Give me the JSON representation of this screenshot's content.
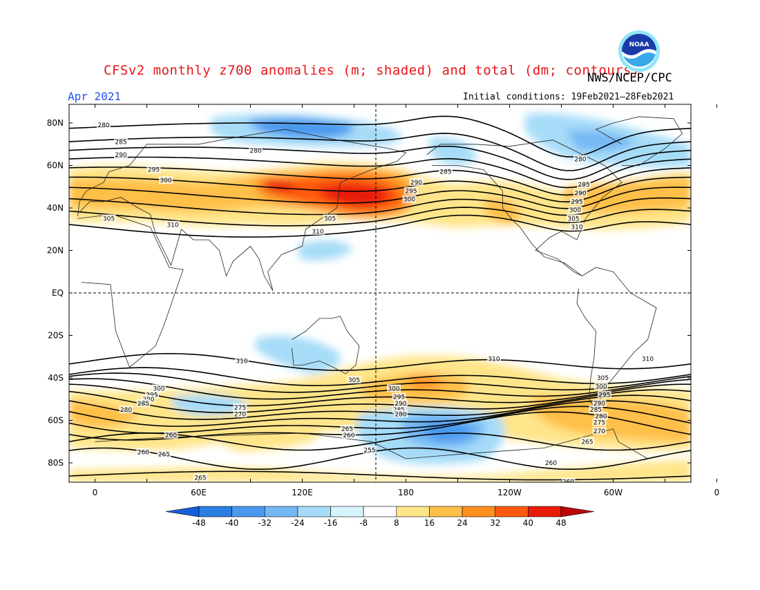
{
  "header": {
    "title": "CFSv2 monthly z700 anomalies (m; shaded) and total (dm; contours)",
    "agency": "NWS/NCEP/CPC",
    "month": "Apr 2021",
    "initial_conditions": "Initial conditions: 19Feb2021–28Feb2021",
    "logo_text": "NOAA"
  },
  "axes": {
    "lat_labels": [
      "80N",
      "60N",
      "40N",
      "20N",
      "EQ",
      "20S",
      "40S",
      "60S",
      "80S"
    ],
    "lon_labels": [
      "0",
      "60E",
      "120E",
      "180",
      "120W",
      "60W",
      "0"
    ]
  },
  "colorbar": {
    "labels": [
      "-48",
      "-40",
      "-32",
      "-24",
      "-16",
      "-8",
      "8",
      "16",
      "24",
      "32",
      "40",
      "48"
    ],
    "colors": [
      "#1560d8",
      "#2b7fe3",
      "#4a99ee",
      "#75b8f4",
      "#a6dcf8",
      "#d6f4fb",
      "#ffffff",
      "#ffe58a",
      "#ffc04a",
      "#ff9020",
      "#ff5a10",
      "#e81a08",
      "#b80808"
    ]
  },
  "contour_labels": [
    {
      "text": "280",
      "lon": 5,
      "lat": 79
    },
    {
      "text": "285",
      "lon": 15,
      "lat": 71
    },
    {
      "text": "290",
      "lon": 15,
      "lat": 65
    },
    {
      "text": "295",
      "lon": 34,
      "lat": 58
    },
    {
      "text": "300",
      "lon": 41,
      "lat": 53
    },
    {
      "text": "305",
      "lon": 8,
      "lat": 35
    },
    {
      "text": "310",
      "lon": 45,
      "lat": 32
    },
    {
      "text": "280",
      "lon": 93,
      "lat": 67
    },
    {
      "text": "305",
      "lon": 136,
      "lat": 35
    },
    {
      "text": "310",
      "lon": 129,
      "lat": 29
    },
    {
      "text": "290",
      "lon": 186,
      "lat": 52
    },
    {
      "text": "295",
      "lon": 183,
      "lat": 48
    },
    {
      "text": "300",
      "lon": 182,
      "lat": 44
    },
    {
      "text": "285",
      "lon": 203,
      "lat": 57
    },
    {
      "text": "280",
      "lon": 281,
      "lat": 63
    },
    {
      "text": "285",
      "lon": 283,
      "lat": 51
    },
    {
      "text": "290",
      "lon": 281,
      "lat": 47
    },
    {
      "text": "295",
      "lon": 279,
      "lat": 43
    },
    {
      "text": "300",
      "lon": 278,
      "lat": 39
    },
    {
      "text": "305",
      "lon": 277,
      "lat": 35
    },
    {
      "text": "310",
      "lon": 279,
      "lat": 31
    },
    {
      "text": "310",
      "lon": 85,
      "lat": -32
    },
    {
      "text": "305",
      "lon": 150,
      "lat": -41
    },
    {
      "text": "300",
      "lon": 37,
      "lat": -45
    },
    {
      "text": "295",
      "lon": 33,
      "lat": -48
    },
    {
      "text": "290",
      "lon": 31,
      "lat": -50
    },
    {
      "text": "285",
      "lon": 28,
      "lat": -52
    },
    {
      "text": "280",
      "lon": 18,
      "lat": -55
    },
    {
      "text": "275",
      "lon": 84,
      "lat": -54
    },
    {
      "text": "270",
      "lon": 84,
      "lat": -57
    },
    {
      "text": "310",
      "lon": 231,
      "lat": -31
    },
    {
      "text": "310",
      "lon": 320,
      "lat": -31
    },
    {
      "text": "300",
      "lon": 173,
      "lat": -45
    },
    {
      "text": "295",
      "lon": 176,
      "lat": -49
    },
    {
      "text": "290",
      "lon": 177,
      "lat": -52
    },
    {
      "text": "285",
      "lon": 176,
      "lat": -55
    },
    {
      "text": "280",
      "lon": 177,
      "lat": -57
    },
    {
      "text": "305",
      "lon": 294,
      "lat": -40
    },
    {
      "text": "300",
      "lon": 293,
      "lat": -44
    },
    {
      "text": "295",
      "lon": 295,
      "lat": -48
    },
    {
      "text": "290",
      "lon": 292,
      "lat": -52
    },
    {
      "text": "285",
      "lon": 290,
      "lat": -55
    },
    {
      "text": "280",
      "lon": 293,
      "lat": -58
    },
    {
      "text": "275",
      "lon": 292,
      "lat": -61
    },
    {
      "text": "270",
      "lon": 292,
      "lat": -65
    },
    {
      "text": "265",
      "lon": 285,
      "lat": -70
    },
    {
      "text": "260",
      "lon": 44,
      "lat": -67
    },
    {
      "text": "260",
      "lon": 28,
      "lat": -75
    },
    {
      "text": "265",
      "lon": 40,
      "lat": -76
    },
    {
      "text": "265",
      "lon": 146,
      "lat": -64
    },
    {
      "text": "260",
      "lon": 147,
      "lat": -67
    },
    {
      "text": "255",
      "lon": 159,
      "lat": -74
    },
    {
      "text": "265",
      "lon": 61,
      "lat": -87
    },
    {
      "text": "260",
      "lon": 264,
      "lat": -80
    },
    {
      "text": "260",
      "lon": 274,
      "lat": -89
    }
  ]
}
